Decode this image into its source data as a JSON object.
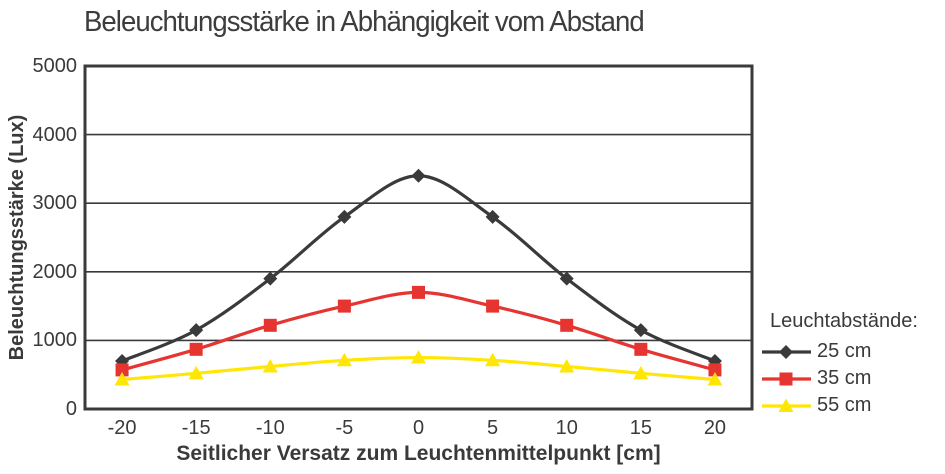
{
  "chart_data": {
    "type": "line",
    "title": "Beleuchtungsstärke in Abhängigkeit vom Abstand",
    "xlabel": "Seitlicher Versatz zum Leuchtenmittelpunkt [cm]",
    "ylabel": "Beleuchtungsstärke (Lux)",
    "x": [
      -20,
      -15,
      -10,
      -5,
      0,
      5,
      10,
      15,
      20
    ],
    "xticklabels": [
      "-20",
      "-15",
      "-10",
      "-5",
      "0",
      "5",
      "10",
      "15",
      "20"
    ],
    "ylim": [
      0,
      5000
    ],
    "yticks": [
      0,
      1000,
      2000,
      3000,
      4000,
      5000
    ],
    "grid": true,
    "legend_title": "Leuchtabstände:",
    "legend_position": "right",
    "axis_color": "#3a3a3a",
    "series": [
      {
        "name": "25 cm",
        "marker": "diamond",
        "color": "#3a3a3a",
        "values": [
          700,
          1150,
          1900,
          2800,
          3400,
          2800,
          1900,
          1150,
          700
        ]
      },
      {
        "name": "35 cm",
        "marker": "square",
        "color": "#e63431",
        "values": [
          570,
          870,
          1220,
          1500,
          1700,
          1500,
          1220,
          870,
          570
        ]
      },
      {
        "name": "55 cm",
        "marker": "triangle",
        "color": "#ffe605",
        "values": [
          430,
          520,
          620,
          710,
          750,
          710,
          620,
          520,
          430
        ]
      }
    ]
  }
}
